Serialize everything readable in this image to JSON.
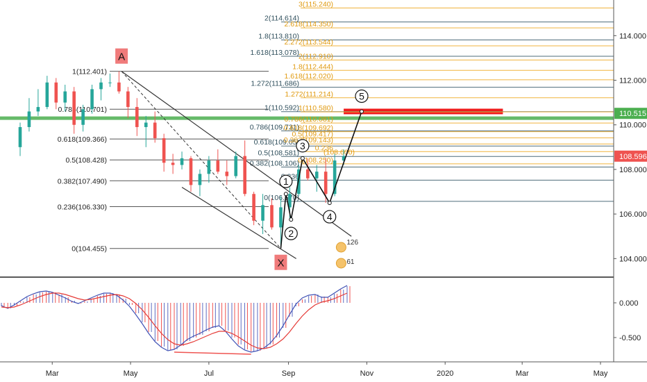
{
  "chart_data": [
    {
      "type": "candlestick",
      "panel": "price",
      "grid": false,
      "x_axis": {
        "ticks": [
          "Mar",
          "May",
          "Jul",
          "Sep",
          "Nov",
          "2020",
          "Mar",
          "May"
        ]
      },
      "y_axis": {
        "ticks": [
          "114.000",
          "112.000",
          "110.000",
          "108.000",
          "106.000",
          "104.000"
        ],
        "ylim": [
          103.2,
          115.6
        ]
      },
      "price_tags": [
        {
          "label": "110.515",
          "value": 110.515,
          "color": "#4caf50"
        },
        {
          "label": "108.596",
          "value": 108.596,
          "color": "#ef5350"
        }
      ],
      "retracement_left": [
        {
          "label": "1(112.401)",
          "value": 112.401
        },
        {
          "label": "0.786(110.701)",
          "value": 110.701
        },
        {
          "label": "0.618(109.366)",
          "value": 109.366
        },
        {
          "label": "0.5(108.428)",
          "value": 108.428
        },
        {
          "label": "0.382(107.490)",
          "value": 107.49
        },
        {
          "label": "0.236(106.330)",
          "value": 106.33
        },
        {
          "label": "0(104.455)",
          "value": 104.455
        }
      ],
      "retracement_middle": [
        {
          "label": "2(114.614)",
          "value": 114.614
        },
        {
          "label": "1.8(113.810)",
          "value": 113.81
        },
        {
          "label": "1.618(113.078)",
          "value": 113.078
        },
        {
          "label": "1.272(111.686)",
          "value": 111.686
        },
        {
          "label": "1(110.592)",
          "value": 110.592
        },
        {
          "label": "0.786(109.731)",
          "value": 109.731
        },
        {
          "label": "0.618(109.05)",
          "value": 109.05
        },
        {
          "label": "0.5(108.581)",
          "value": 108.581
        },
        {
          "label": "0.382(108.106)",
          "value": 108.106
        },
        {
          "label": "0.236",
          "value": 107.52
        },
        {
          "label": "0(106.570)",
          "value": 106.57
        }
      ],
      "extension_right": [
        {
          "label": "3(115.240)",
          "value": 115.24
        },
        {
          "label": "2.618(114.350)",
          "value": 114.35
        },
        {
          "label": "2.272(113.544)",
          "value": 113.544
        },
        {
          "label": "2(112.910)",
          "value": 112.91
        },
        {
          "label": "1.8(112.444)",
          "value": 112.444
        },
        {
          "label": "1.618(112.020)",
          "value": 112.02
        },
        {
          "label": "1.272(111.214)",
          "value": 111.214
        },
        {
          "label": "1(110.580)",
          "value": 110.58
        },
        {
          "label": "0.786(110.081)",
          "value": 110.081
        },
        {
          "label": "0.618(109.692)",
          "value": 109.692
        },
        {
          "label": "0.5(109.417)",
          "value": 109.417
        },
        {
          "label": "0.382(109.143)",
          "value": 109.143
        },
        {
          "label": "0.236",
          "value": 108.8
        },
        {
          "label": "0(108.250)",
          "value": 108.25
        }
      ],
      "other_labels": [
        "(108.600)"
      ],
      "pattern_points": [
        {
          "label": "A",
          "date": "2019-04-24",
          "value": 112.4
        },
        {
          "label": "X",
          "date": "2019-08-26",
          "value": 104.455
        }
      ],
      "wave_points": [
        {
          "label": "1",
          "date": "2019-08-30",
          "value": 106.9
        },
        {
          "label": "2",
          "date": "2019-09-03",
          "value": 105.75
        },
        {
          "label": "3",
          "date": "2019-09-12",
          "value": 108.5
        },
        {
          "label": "4",
          "date": "2019-10-03",
          "value": 106.5
        },
        {
          "label": "5",
          "date": "2019-10-28",
          "value": 110.6
        }
      ],
      "channel": {
        "upper": [
          {
            "date": "2019-04-24",
            "value": 112.4
          },
          {
            "date": "2019-10-20",
            "value": 105.0
          }
        ],
        "lower": [
          {
            "date": "2019-06-10",
            "value": 107.2
          },
          {
            "date": "2019-09-07",
            "value": 104.0
          }
        ]
      },
      "target_zone": {
        "value": 110.6,
        "from": "2019-10-14",
        "to": "2020-02-15",
        "color": "#f01b1b"
      },
      "horizontal_level": {
        "value": 110.3,
        "color": "#4caf50"
      },
      "earnings": [
        {
          "date": "2019-10-12",
          "labels": [
            "126",
            "61"
          ]
        }
      ],
      "candles": [
        {
          "date": "2019-02-04",
          "open": 109.0,
          "high": 110.1,
          "low": 108.6,
          "close": 109.9
        },
        {
          "date": "2019-02-11",
          "open": 109.9,
          "high": 111.2,
          "low": 109.7,
          "close": 110.6
        },
        {
          "date": "2019-02-18",
          "open": 110.6,
          "high": 111.6,
          "low": 110.4,
          "close": 110.8
        },
        {
          "date": "2019-02-25",
          "open": 110.8,
          "high": 112.2,
          "low": 110.7,
          "close": 111.9
        },
        {
          "date": "2019-03-04",
          "open": 111.9,
          "high": 112.1,
          "low": 110.7,
          "close": 111.0
        },
        {
          "date": "2019-03-11",
          "open": 111.0,
          "high": 111.8,
          "low": 110.6,
          "close": 111.5
        },
        {
          "date": "2019-03-18",
          "open": 111.5,
          "high": 111.7,
          "low": 109.6,
          "close": 110.0
        },
        {
          "date": "2019-03-25",
          "open": 110.0,
          "high": 110.9,
          "low": 109.7,
          "close": 110.7
        },
        {
          "date": "2019-04-01",
          "open": 110.7,
          "high": 111.8,
          "low": 110.5,
          "close": 111.6
        },
        {
          "date": "2019-04-08",
          "open": 111.6,
          "high": 112.1,
          "low": 111.1,
          "close": 111.9
        },
        {
          "date": "2019-04-15",
          "open": 111.9,
          "high": 112.3,
          "low": 111.7,
          "close": 111.9
        },
        {
          "date": "2019-04-22",
          "open": 111.9,
          "high": 112.4,
          "low": 111.4,
          "close": 111.5
        },
        {
          "date": "2019-04-29",
          "open": 111.5,
          "high": 111.7,
          "low": 110.3,
          "close": 110.8
        },
        {
          "date": "2019-05-06",
          "open": 110.8,
          "high": 111.2,
          "low": 109.5,
          "close": 109.9
        },
        {
          "date": "2019-05-13",
          "open": 109.9,
          "high": 110.4,
          "low": 109.0,
          "close": 110.1
        },
        {
          "date": "2019-05-20",
          "open": 110.1,
          "high": 110.6,
          "low": 109.2,
          "close": 109.4
        },
        {
          "date": "2019-05-27",
          "open": 109.4,
          "high": 109.6,
          "low": 107.9,
          "close": 108.3
        },
        {
          "date": "2019-06-03",
          "open": 108.3,
          "high": 108.7,
          "low": 107.8,
          "close": 108.2
        },
        {
          "date": "2019-06-10",
          "open": 108.2,
          "high": 108.8,
          "low": 108.0,
          "close": 108.5
        },
        {
          "date": "2019-06-17",
          "open": 108.5,
          "high": 108.6,
          "low": 107.0,
          "close": 107.3
        },
        {
          "date": "2019-06-24",
          "open": 107.3,
          "high": 108.0,
          "low": 106.8,
          "close": 107.8
        },
        {
          "date": "2019-07-01",
          "open": 107.8,
          "high": 108.6,
          "low": 107.4,
          "close": 108.4
        },
        {
          "date": "2019-07-08",
          "open": 108.4,
          "high": 108.9,
          "low": 107.8,
          "close": 107.9
        },
        {
          "date": "2019-07-15",
          "open": 107.9,
          "high": 108.4,
          "low": 107.3,
          "close": 107.7
        },
        {
          "date": "2019-07-22",
          "open": 107.7,
          "high": 108.8,
          "low": 107.6,
          "close": 108.6
        },
        {
          "date": "2019-07-29",
          "open": 108.6,
          "high": 109.3,
          "low": 106.8,
          "close": 106.9
        },
        {
          "date": "2019-08-05",
          "open": 106.9,
          "high": 107.0,
          "low": 105.5,
          "close": 105.7
        },
        {
          "date": "2019-08-12",
          "open": 105.7,
          "high": 106.9,
          "low": 105.1,
          "close": 106.4
        },
        {
          "date": "2019-08-19",
          "open": 106.4,
          "high": 106.7,
          "low": 105.3,
          "close": 105.4
        },
        {
          "date": "2019-08-26",
          "open": 105.4,
          "high": 106.8,
          "low": 104.5,
          "close": 106.3
        },
        {
          "date": "2019-09-02",
          "open": 106.3,
          "high": 107.2,
          "low": 105.8,
          "close": 106.9
        },
        {
          "date": "2019-09-09",
          "open": 106.9,
          "high": 108.2,
          "low": 106.8,
          "close": 108.0
        },
        {
          "date": "2019-09-16",
          "open": 108.0,
          "high": 108.5,
          "low": 107.5,
          "close": 107.6
        },
        {
          "date": "2019-09-23",
          "open": 107.6,
          "high": 108.2,
          "low": 107.0,
          "close": 107.9
        },
        {
          "date": "2019-09-30",
          "open": 107.9,
          "high": 108.5,
          "low": 106.5,
          "close": 106.9
        },
        {
          "date": "2019-10-07",
          "open": 106.9,
          "high": 108.7,
          "low": 106.8,
          "close": 108.4
        },
        {
          "date": "2019-10-14",
          "open": 108.4,
          "high": 108.9,
          "low": 108.2,
          "close": 108.6
        }
      ]
    },
    {
      "type": "histogram",
      "panel": "oscillator",
      "y_axis": {
        "ticks": [
          "0.000",
          "-0.500"
        ],
        "ylim": [
          -0.85,
          0.35
        ]
      },
      "values": [
        -0.05,
        -0.08,
        -0.04,
        0.02,
        0.08,
        0.12,
        0.15,
        0.16,
        0.15,
        0.12,
        0.08,
        0.03,
        -0.01,
        0.02,
        0.06,
        0.1,
        0.13,
        0.14,
        0.12,
        0.06,
        -0.03,
        -0.15,
        -0.28,
        -0.42,
        -0.55,
        -0.63,
        -0.68,
        -0.67,
        -0.62,
        -0.55,
        -0.5,
        -0.46,
        -0.41,
        -0.36,
        -0.33,
        -0.4,
        -0.5,
        -0.6,
        -0.67,
        -0.7,
        -0.69,
        -0.66,
        -0.6,
        -0.5,
        -0.36,
        -0.2,
        -0.05,
        0.05,
        0.1,
        0.12,
        0.09,
        0.08,
        0.13,
        0.19,
        0.24
      ],
      "series": [
        {
          "values": [
            -0.04,
            -0.08,
            -0.03,
            0.03,
            0.09,
            0.13,
            0.16,
            0.17,
            0.15,
            0.11,
            0.07,
            0.02,
            -0.01,
            0.03,
            0.07,
            0.11,
            0.14,
            0.14,
            0.11,
            0.04,
            -0.05,
            -0.17,
            -0.3,
            -0.44,
            -0.56,
            -0.64,
            -0.69,
            -0.67,
            -0.61,
            -0.53,
            -0.48,
            -0.44,
            -0.39,
            -0.35,
            -0.33,
            -0.41,
            -0.52,
            -0.62,
            -0.68,
            -0.71,
            -0.69,
            -0.65,
            -0.58,
            -0.47,
            -0.33,
            -0.17,
            -0.02,
            0.07,
            0.11,
            0.12,
            0.08,
            0.08,
            0.14,
            0.2,
            0.25
          ],
          "color": "#3f51b5"
        },
        {
          "values": [
            -0.06,
            -0.07,
            -0.06,
            -0.03,
            0.01,
            0.05,
            0.09,
            0.12,
            0.14,
            0.14,
            0.12,
            0.09,
            0.06,
            0.04,
            0.05,
            0.07,
            0.09,
            0.11,
            0.12,
            0.1,
            0.06,
            -0.01,
            -0.1,
            -0.21,
            -0.33,
            -0.44,
            -0.53,
            -0.59,
            -0.61,
            -0.59,
            -0.56,
            -0.52,
            -0.48,
            -0.44,
            -0.41,
            -0.41,
            -0.44,
            -0.49,
            -0.55,
            -0.61,
            -0.65,
            -0.66,
            -0.64,
            -0.59,
            -0.52,
            -0.42,
            -0.3,
            -0.19,
            -0.1,
            -0.03,
            0.01,
            0.03,
            0.06,
            0.1,
            0.14
          ],
          "color": "#e53935"
        }
      ],
      "divergence": [
        {
          "from_index": 27,
          "to_index": 39,
          "color": "#ef5350"
        }
      ]
    }
  ]
}
